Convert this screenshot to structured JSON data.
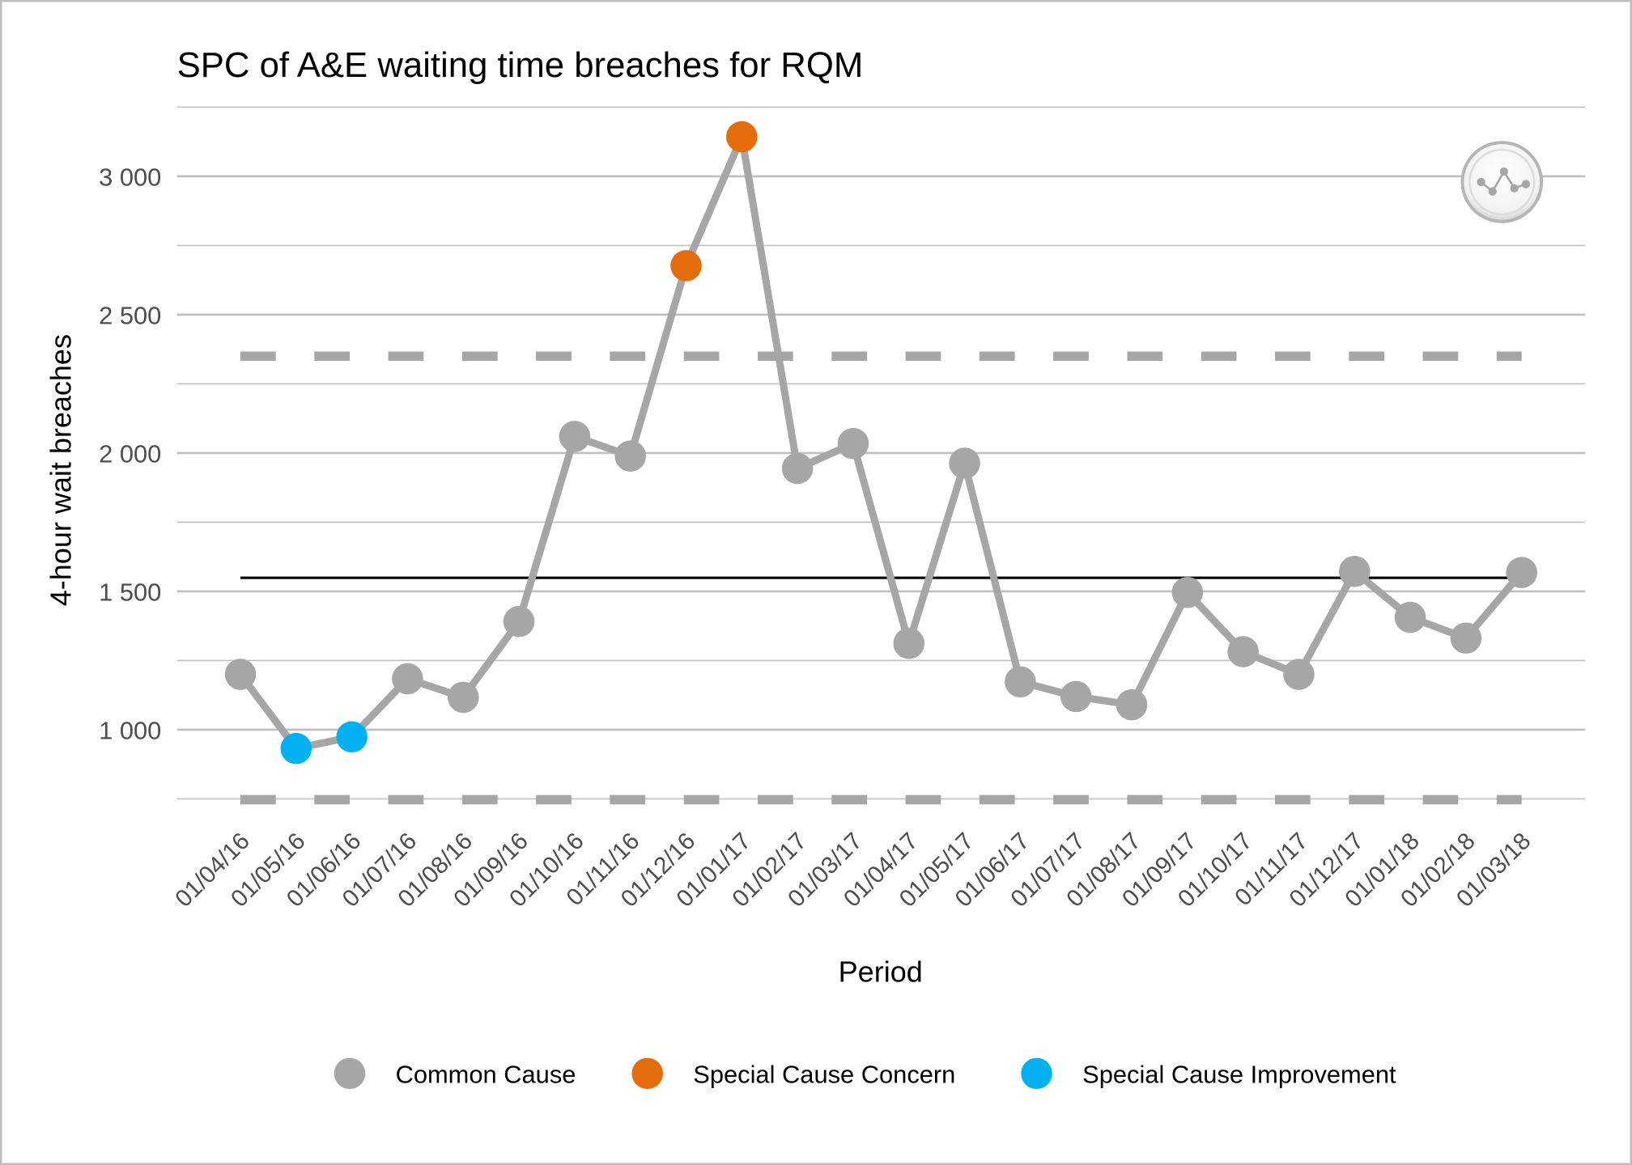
{
  "chart_data": {
    "type": "line",
    "title": "SPC of A&E waiting time breaches for RQM",
    "xlabel": "Period",
    "ylabel": "4-hour wait breaches",
    "ylim": [
      750,
      3250
    ],
    "yticks": [
      1000,
      1500,
      2000,
      2500,
      3000
    ],
    "ytick_labels": [
      "1 000",
      "1 500",
      "2 000",
      "2 500",
      "3 000"
    ],
    "grid": true,
    "categories": [
      "01/04/16",
      "01/05/16",
      "01/06/16",
      "01/07/16",
      "01/08/16",
      "01/09/16",
      "01/10/16",
      "01/11/16",
      "01/12/16",
      "01/01/17",
      "01/02/17",
      "01/03/17",
      "01/04/17",
      "01/05/17",
      "01/06/17",
      "01/07/17",
      "01/08/17",
      "01/09/17",
      "01/10/17",
      "01/11/17",
      "01/12/17",
      "01/01/18",
      "01/02/18",
      "01/03/18"
    ],
    "values": [
      1200,
      932,
      974,
      1184,
      1117,
      1391,
      2060,
      1989,
      2677,
      3143,
      1944,
      2034,
      1312,
      1963,
      1173,
      1120,
      1090,
      1496,
      1282,
      1200,
      1572,
      1406,
      1331,
      1568
    ],
    "point_class": [
      "common",
      "improvement",
      "improvement",
      "common",
      "common",
      "common",
      "common",
      "common",
      "concern",
      "concern",
      "common",
      "common",
      "common",
      "common",
      "common",
      "common",
      "common",
      "common",
      "common",
      "common",
      "common",
      "common",
      "common",
      "common"
    ],
    "mean": 1549,
    "upper_control_limit": 2350,
    "lower_control_limit": 747,
    "legend_placement": "bottom",
    "legend": [
      {
        "key": "common",
        "label": "Common Cause",
        "color": "#A6A6A6"
      },
      {
        "key": "concern",
        "label": "Special Cause Concern",
        "color": "#E46C0A"
      },
      {
        "key": "improvement",
        "label": "Special Cause Improvement",
        "color": "#00B0F0"
      }
    ],
    "colors": {
      "line": "#A6A6A6",
      "mean": "#000000",
      "limits": "#A6A6A6",
      "grid": "#BFBFBF"
    },
    "icon": "common-cause-variation-icon"
  }
}
